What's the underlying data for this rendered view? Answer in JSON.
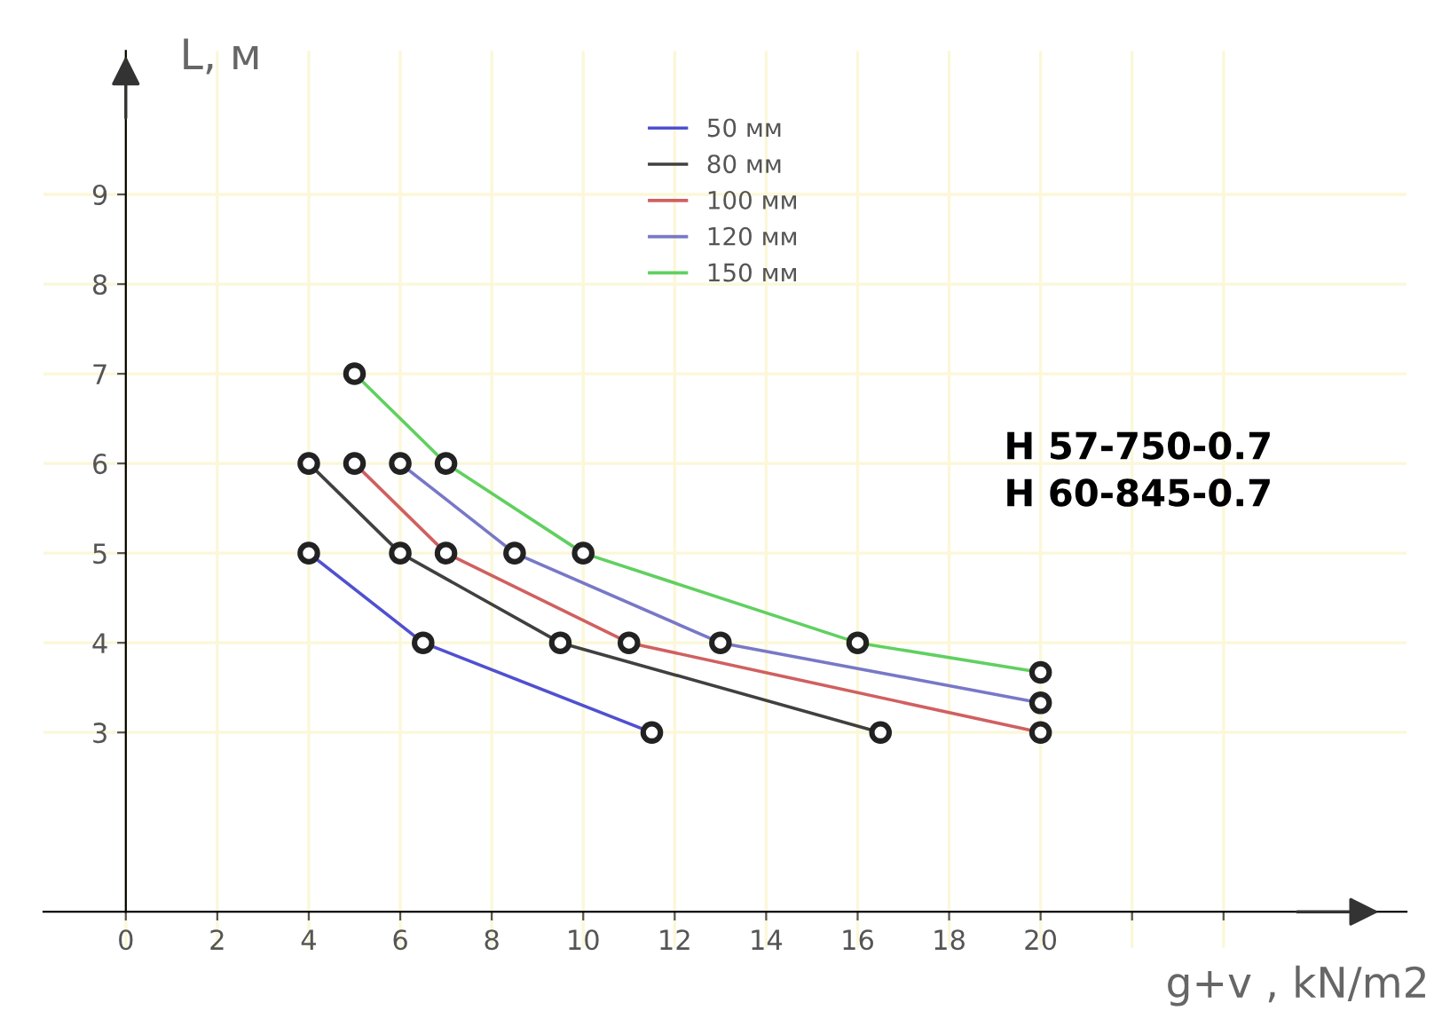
{
  "chart_data": {
    "type": "line",
    "xlabel": "g+v , kN/m2",
    "ylabel": "L, м",
    "xlim": [
      -1.8,
      28
    ],
    "ylim": [
      0.6,
      10.6
    ],
    "xticks": [
      0,
      2,
      4,
      6,
      8,
      10,
      12,
      14,
      16,
      18,
      20,
      {
        "value": 22,
        "label": null
      },
      {
        "value": 24,
        "label": null
      }
    ],
    "yticks": [
      3,
      4,
      5,
      6,
      7,
      8,
      9
    ],
    "grid": true,
    "marker": "circle",
    "line_style": "solid",
    "legend": "top right",
    "annotations": [
      "H 57-750-0.7\nH 60-845-0.7"
    ],
    "series": [
      {
        "name": "50 мм",
        "color": "#5050d0",
        "x": [
          4,
          6.5,
          11.5
        ],
        "values": [
          5,
          4,
          3
        ]
      },
      {
        "name": "80 мм",
        "color": "#404040",
        "x": [
          4,
          6,
          9.5,
          16.5
        ],
        "values": [
          6,
          5,
          4,
          3
        ]
      },
      {
        "name": "100 мм",
        "color": "#d06060",
        "x": [
          5,
          7,
          11,
          20
        ],
        "values": [
          6,
          5,
          4,
          3
        ]
      },
      {
        "name": "120 мм",
        "color": "#7878c8",
        "x": [
          6,
          8.5,
          13,
          20
        ],
        "values": [
          6,
          5,
          4,
          3.33
        ]
      },
      {
        "name": "150 мм",
        "color": "#60d060",
        "x": [
          5,
          7,
          10,
          16,
          20
        ],
        "values": [
          7,
          6,
          5,
          4,
          3.67
        ]
      }
    ]
  }
}
